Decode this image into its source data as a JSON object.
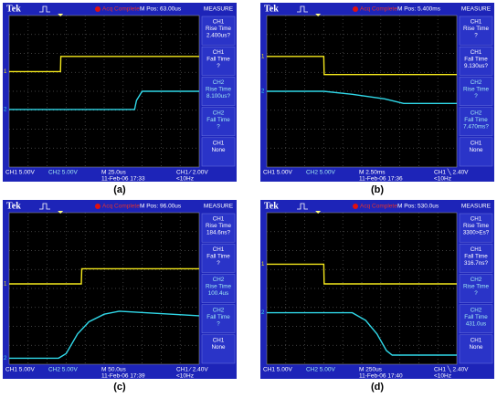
{
  "panels": [
    {
      "brand": "Tek",
      "status": "Acq Complete",
      "position": "M Pos: 63.00us",
      "measure_title": "MEASURE",
      "measures": [
        [
          "CH1",
          "Rise Time",
          "2.400us?"
        ],
        [
          "CH1",
          "Fall Time",
          "?"
        ],
        [
          "CH2",
          "Rise Time",
          "8.100us?"
        ],
        [
          "CH2",
          "Fall Time",
          "?"
        ],
        [
          "CH1",
          "None"
        ]
      ],
      "ch1_marker": "1",
      "ch2_marker": "2",
      "footer": {
        "ch1": "CH1 5.00V",
        "ch2": "CH2 5.00V",
        "timebase": "M 25.0us",
        "trigger": "CH1 ⁄ 2.00V",
        "date": "11-Feb-06 17:33",
        "freq": "<10Hz"
      },
      "caption": "(a)"
    },
    {
      "brand": "Tek",
      "status": "Acq Complete",
      "position": "M Pos: 5.400ms",
      "measure_title": "MEASURE",
      "measures": [
        [
          "CH1",
          "Rise Time",
          "?"
        ],
        [
          "CH1",
          "Fall Time",
          "9.130us?"
        ],
        [
          "CH2",
          "Rise Time",
          "?"
        ],
        [
          "CH2",
          "Fall Time",
          "7.470ms?"
        ],
        [
          "CH1",
          "None"
        ]
      ],
      "ch1_marker": "1",
      "ch2_marker": "2",
      "footer": {
        "ch1": "CH1 5.00V",
        "ch2": "CH2 5.00V",
        "timebase": "M 2.50ms",
        "trigger": "CH1 ╲ 2.40V",
        "date": "11-Feb-06 17:36",
        "freq": "<10Hz"
      },
      "caption": "(b)"
    },
    {
      "brand": "Tek",
      "status": "Acq Complete",
      "position": "M Pos: 96.00us",
      "measure_title": "MEASURE",
      "measures": [
        [
          "CH1",
          "Rise Time",
          "184.6ns?"
        ],
        [
          "CH1",
          "Fall Time",
          "?"
        ],
        [
          "CH2",
          "Rise Time",
          "100.4us"
        ],
        [
          "CH2",
          "Fall Time",
          "?"
        ],
        [
          "CH1",
          "None"
        ]
      ],
      "ch1_marker": "1",
      "ch2_marker": "2",
      "footer": {
        "ch1": "CH1 5.00V",
        "ch2": "CH2 5.00V",
        "timebase": "M 50.0us",
        "trigger": "CH1 ⁄ 2.40V",
        "date": "11-Feb-06 17:39",
        "freq": "<10Hz"
      },
      "caption": "(c)"
    },
    {
      "brand": "Tek",
      "status": "Acq Complete",
      "position": "M Pos: 530.0us",
      "measure_title": "MEASURE",
      "measures": [
        [
          "CH1",
          "Rise Time",
          "3300>Es?"
        ],
        [
          "CH1",
          "Fall Time",
          "316.7ns?"
        ],
        [
          "CH2",
          "Rise Time",
          "?"
        ],
        [
          "CH2",
          "Fall Time",
          "431.0us"
        ],
        [
          "CH1",
          "None"
        ]
      ],
      "ch1_marker": "1",
      "ch2_marker": "2",
      "footer": {
        "ch1": "CH1 5.00V",
        "ch2": "CH2 5.00V",
        "timebase": "M 250us",
        "trigger": "CH1 ╲ 2.40V",
        "date": "11-Feb-06 17:40",
        "freq": "<10Hz"
      },
      "caption": "(d)"
    }
  ]
}
